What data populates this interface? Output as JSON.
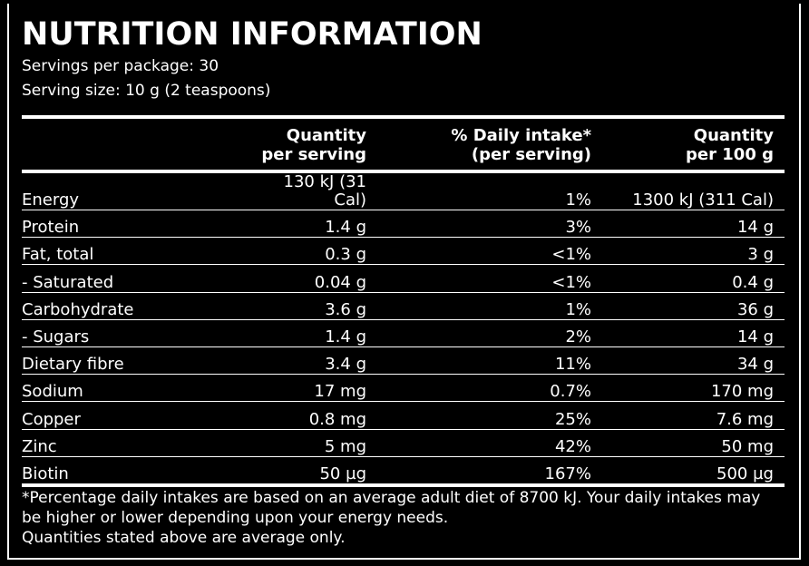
{
  "title": "NUTRITION INFORMATION",
  "servings_per_package": "Servings per package: 30",
  "serving_size": "Serving size: 10 g (2 teaspoons)",
  "headers": {
    "col1a": "Quantity",
    "col1b": "per serving",
    "col2a": "% Daily intake*",
    "col2b": "(per serving)",
    "col3a": "Quantity",
    "col3b": "per 100 g"
  },
  "rows": [
    {
      "name": "Energy",
      "per_serving": "130 kJ (31 Cal)",
      "daily": "1%",
      "per_100g": "1300 kJ (311 Cal)"
    },
    {
      "name": "Protein",
      "per_serving": "1.4 g",
      "daily": "3%",
      "per_100g": "14 g"
    },
    {
      "name": "Fat, total",
      "per_serving": "0.3 g",
      "daily": "<1%",
      "per_100g": "3 g"
    },
    {
      "name": "- Saturated",
      "per_serving": "0.04 g",
      "daily": "<1%",
      "per_100g": "0.4 g"
    },
    {
      "name": "Carbohydrate",
      "per_serving": "3.6 g",
      "daily": "1%",
      "per_100g": "36 g"
    },
    {
      "name": "- Sugars",
      "per_serving": "1.4 g",
      "daily": "2%",
      "per_100g": "14 g"
    },
    {
      "name": "Dietary fibre",
      "per_serving": "3.4 g",
      "daily": "11%",
      "per_100g": "34 g"
    },
    {
      "name": "Sodium",
      "per_serving": "17 mg",
      "daily": "0.7%",
      "per_100g": "170 mg"
    },
    {
      "name": "Copper",
      "per_serving": "0.8 mg",
      "daily": "25%",
      "per_100g": "7.6 mg"
    },
    {
      "name": "Zinc",
      "per_serving": "5 mg",
      "daily": "42%",
      "per_100g": "50 mg"
    },
    {
      "name": "Biotin",
      "per_serving": "50 µg",
      "daily": "167%",
      "per_100g": "500 µg"
    }
  ],
  "footnote1": "*Percentage daily intakes are based on an average adult diet of 8700 kJ. Your daily intakes may be higher or lower depending upon your energy needs.",
  "footnote2": "Quantities stated above are average only."
}
